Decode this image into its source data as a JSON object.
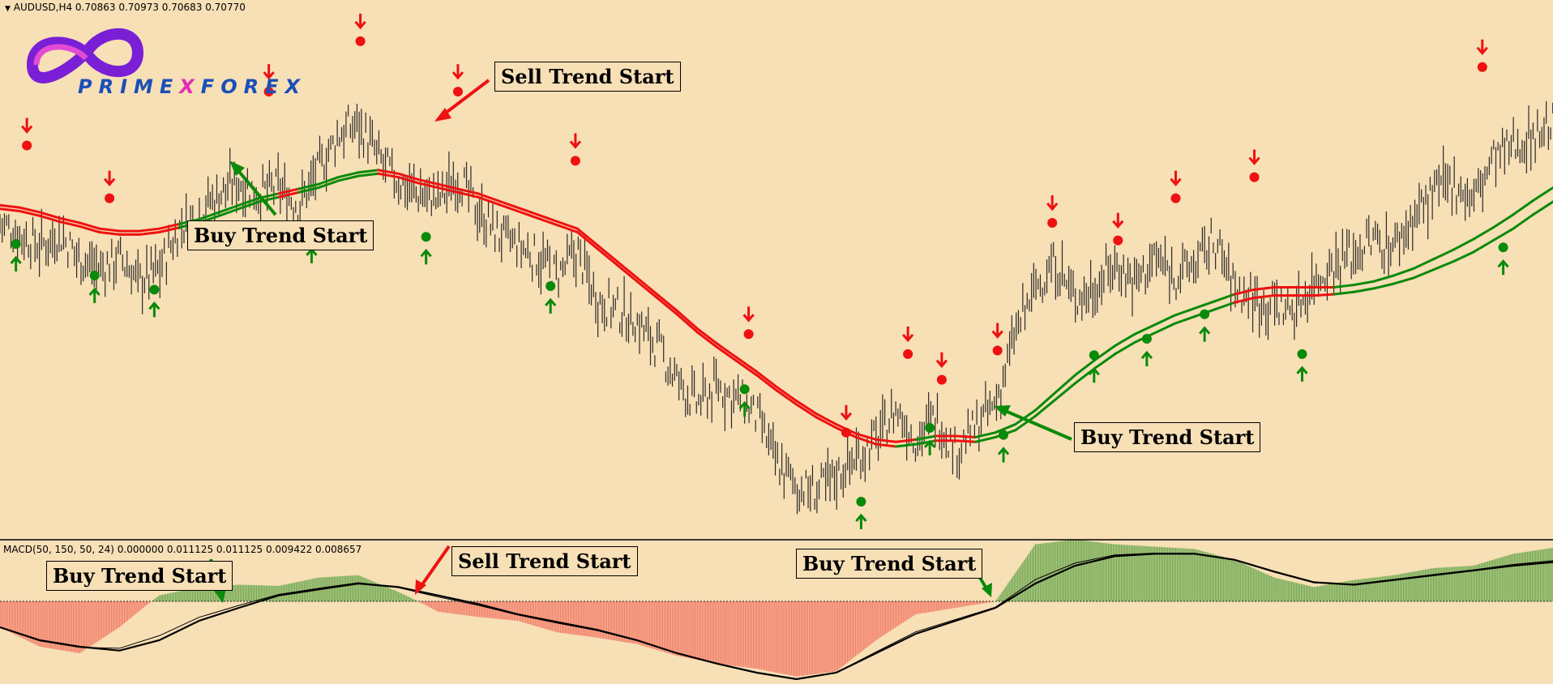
{
  "header": {
    "symbol_info": "AUDUSD,H4  0.70863 0.70973 0.70683 0.70770",
    "macd_info": "MACD(50, 150, 50, 24) 0.000000 0.011125 0.011125 0.009422 0.008657"
  },
  "logo": {
    "part1": "PRIME",
    "part2": "X",
    "part3": "FOREX"
  },
  "annotations": {
    "main_buy_1": "Buy Trend Start",
    "main_sell_1": "Sell Trend Start",
    "main_buy_2": "Buy Trend Start",
    "macd_buy_1": "Buy Trend Start",
    "macd_sell_1": "Sell Trend Start",
    "macd_buy_2": "Buy Trend Start"
  },
  "colors": {
    "background": "#f7dfb6",
    "bull_line": "#0a8a0a",
    "bear_line": "#ee1111",
    "candles": "#2a2a2a",
    "hist_positive": "#6aa84f",
    "hist_negative": "#f27a66"
  },
  "chart_data": [
    {
      "type": "line",
      "name": "price-panel",
      "x": [
        0,
        20,
        40,
        60,
        80,
        100,
        120,
        140,
        160,
        180,
        200,
        220,
        240,
        260,
        280,
        300,
        320,
        340,
        360,
        380,
        400,
        420,
        440,
        460,
        480,
        500,
        520,
        540,
        560,
        580,
        600,
        620,
        640,
        660,
        680,
        700,
        720,
        740,
        760,
        780,
        800,
        820,
        840,
        860,
        880,
        900,
        920,
        940,
        960,
        980,
        1000,
        1020,
        1040,
        1060,
        1080,
        1100,
        1120,
        1140,
        1160,
        1180,
        1200,
        1220,
        1240,
        1260,
        1280,
        1300,
        1320,
        1340,
        1360,
        1380,
        1400,
        1420,
        1440,
        1460,
        1480,
        1500,
        1520,
        1540,
        1560
      ],
      "price": [
        0.7085,
        0.7075,
        0.7065,
        0.7075,
        0.7055,
        0.7045,
        0.7055,
        0.7035,
        0.7045,
        0.708,
        0.7095,
        0.711,
        0.712,
        0.711,
        0.7115,
        0.71,
        0.713,
        0.716,
        0.717,
        0.714,
        0.712,
        0.711,
        0.7105,
        0.7125,
        0.7095,
        0.7075,
        0.7065,
        0.7055,
        0.704,
        0.706,
        0.702,
        0.701,
        0.7,
        0.698,
        0.695,
        0.693,
        0.6945,
        0.6935,
        0.692,
        0.688,
        0.686,
        0.6855,
        0.687,
        0.6885,
        0.69,
        0.6925,
        0.69,
        0.692,
        0.689,
        0.691,
        0.693,
        0.699,
        0.703,
        0.705,
        0.702,
        0.703,
        0.705,
        0.7035,
        0.7055,
        0.704,
        0.705,
        0.707,
        0.703,
        0.702,
        0.7015,
        0.701,
        0.7035,
        0.705,
        0.706,
        0.707,
        0.7065,
        0.709,
        0.711,
        0.712,
        0.7105,
        0.714,
        0.715,
        0.716,
        0.717
      ],
      "ma_fast": [
        0.71,
        0.7098,
        0.7094,
        0.7089,
        0.7085,
        0.708,
        0.7078,
        0.7078,
        0.708,
        0.7084,
        0.7088,
        0.7094,
        0.71,
        0.7106,
        0.711,
        0.7114,
        0.7118,
        0.7124,
        0.7128,
        0.713,
        0.7127,
        0.7122,
        0.7118,
        0.7114,
        0.711,
        0.7104,
        0.7098,
        0.7092,
        0.7086,
        0.708,
        0.7066,
        0.7052,
        0.7038,
        0.7024,
        0.701,
        0.6995,
        0.6982,
        0.697,
        0.6958,
        0.6945,
        0.6933,
        0.6922,
        0.6913,
        0.6905,
        0.69,
        0.6898,
        0.69,
        0.6903,
        0.6903,
        0.6902,
        0.6906,
        0.6913,
        0.6925,
        0.694,
        0.6955,
        0.6968,
        0.698,
        0.699,
        0.6998,
        0.7006,
        0.7012,
        0.7018,
        0.7024,
        0.7028,
        0.703,
        0.703,
        0.703,
        0.703,
        0.7032,
        0.7035,
        0.704,
        0.7046,
        0.7054,
        0.7062,
        0.7071,
        0.7081,
        0.7092,
        0.7104,
        0.7115
      ],
      "ma_slow": [
        0.7097,
        0.7095,
        0.7091,
        0.7086,
        0.7082,
        0.7077,
        0.7075,
        0.7075,
        0.7077,
        0.7081,
        0.7085,
        0.7091,
        0.7097,
        0.7103,
        0.7107,
        0.7111,
        0.7115,
        0.7121,
        0.7125,
        0.7127,
        0.7124,
        0.7119,
        0.7115,
        0.7111,
        0.7107,
        0.7101,
        0.7095,
        0.7089,
        0.7083,
        0.7077,
        0.7063,
        0.7049,
        0.7035,
        0.7021,
        0.7007,
        0.6992,
        0.6979,
        0.6967,
        0.6955,
        0.6942,
        0.693,
        0.6919,
        0.691,
        0.6902,
        0.6896,
        0.6894,
        0.6896,
        0.6899,
        0.6899,
        0.6898,
        0.6902,
        0.6908,
        0.692,
        0.6934,
        0.6948,
        0.6961,
        0.6973,
        0.6983,
        0.6991,
        0.6999,
        0.7005,
        0.7011,
        0.7017,
        0.7021,
        0.7023,
        0.7023,
        0.7023,
        0.7024,
        0.7026,
        0.7029,
        0.7033,
        0.7038,
        0.7045,
        0.7052,
        0.706,
        0.707,
        0.708,
        0.7092,
        0.7103
      ],
      "buy_signals": [
        {
          "x": 16,
          "y": 0.7067
        },
        {
          "x": 95,
          "y": 0.704
        },
        {
          "x": 155,
          "y": 0.7028
        },
        {
          "x": 313,
          "y": 0.7074
        },
        {
          "x": 428,
          "y": 0.7073
        },
        {
          "x": 553,
          "y": 0.7031
        },
        {
          "x": 748,
          "y": 0.6943
        },
        {
          "x": 865,
          "y": 0.6847
        },
        {
          "x": 934,
          "y": 0.691
        },
        {
          "x": 1008,
          "y": 0.6904
        },
        {
          "x": 1099,
          "y": 0.6972
        },
        {
          "x": 1152,
          "y": 0.6986
        },
        {
          "x": 1210,
          "y": 0.7007
        },
        {
          "x": 1308,
          "y": 0.6973
        },
        {
          "x": 1510,
          "y": 0.7064
        }
      ],
      "sell_signals": [
        {
          "x": 27,
          "y": 0.7151
        },
        {
          "x": 110,
          "y": 0.7106
        },
        {
          "x": 270,
          "y": 0.7197
        },
        {
          "x": 362,
          "y": 0.724
        },
        {
          "x": 460,
          "y": 0.7197
        },
        {
          "x": 578,
          "y": 0.7138
        },
        {
          "x": 752,
          "y": 0.699
        },
        {
          "x": 850,
          "y": 0.6906
        },
        {
          "x": 912,
          "y": 0.6973
        },
        {
          "x": 946,
          "y": 0.6951
        },
        {
          "x": 1002,
          "y": 0.6976
        },
        {
          "x": 1057,
          "y": 0.7085
        },
        {
          "x": 1123,
          "y": 0.707
        },
        {
          "x": 1181,
          "y": 0.7106
        },
        {
          "x": 1260,
          "y": 0.7124
        },
        {
          "x": 1489,
          "y": 0.7218
        }
      ],
      "ylim": [
        0.682,
        0.726
      ]
    },
    {
      "type": "bar",
      "name": "macd-panel",
      "x": [
        0,
        40,
        80,
        120,
        160,
        200,
        240,
        280,
        320,
        360,
        400,
        440,
        480,
        520,
        560,
        600,
        640,
        680,
        720,
        760,
        800,
        840,
        880,
        920,
        960,
        1000,
        1040,
        1080,
        1120,
        1160,
        1200,
        1240,
        1280,
        1320,
        1360,
        1400,
        1440,
        1480,
        1520,
        1560
      ],
      "histogram": [
        -0.002,
        -0.0035,
        -0.004,
        -0.002,
        0.0005,
        0.0012,
        0.0014,
        0.0013,
        0.002,
        0.0022,
        0.0008,
        -0.0008,
        -0.0012,
        -0.0015,
        -0.0024,
        -0.0028,
        -0.0033,
        -0.0042,
        -0.0048,
        -0.0052,
        -0.0058,
        -0.0054,
        -0.003,
        -0.001,
        -0.0005,
        0.0,
        0.0048,
        0.0052,
        0.0048,
        0.0046,
        0.0044,
        0.0035,
        0.002,
        0.0012,
        0.0018,
        0.0022,
        0.0028,
        0.003,
        0.004,
        0.0045
      ],
      "signal": [
        -0.002,
        -0.003,
        -0.0035,
        -0.0038,
        -0.003,
        -0.0015,
        -0.0005,
        0.0005,
        0.001,
        0.0015,
        0.0012,
        0.0005,
        -0.0002,
        -0.001,
        -0.0016,
        -0.0022,
        -0.003,
        -0.004,
        -0.0048,
        -0.0055,
        -0.006,
        -0.0055,
        -0.004,
        -0.0025,
        -0.0015,
        -0.0005,
        0.0015,
        0.003,
        0.0038,
        0.004,
        0.004,
        0.0035,
        0.0025,
        0.0016,
        0.0014,
        0.0018,
        0.0022,
        0.0026,
        0.003,
        0.0033
      ],
      "ylim": [
        -0.006,
        0.0045
      ]
    }
  ]
}
